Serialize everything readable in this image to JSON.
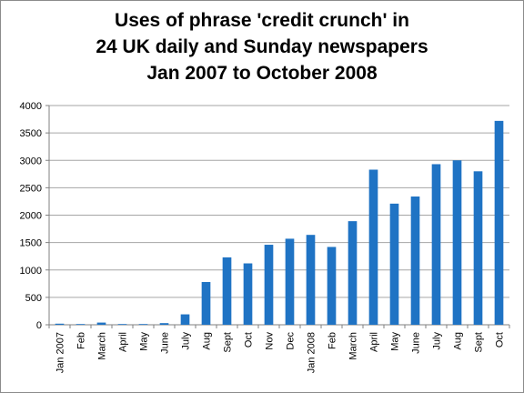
{
  "chart_data": {
    "type": "bar",
    "title_lines": [
      "Uses of phrase 'credit crunch' in",
      "24 UK daily and Sunday newspapers",
      "Jan 2007 to October 2008"
    ],
    "categories": [
      "Jan 2007",
      "Feb",
      "March",
      "April",
      "May",
      "June",
      "July",
      "Aug",
      "Sept",
      "Oct",
      "Nov",
      "Dec",
      "Jan 2008",
      "Feb",
      "March",
      "April",
      "May",
      "June",
      "July",
      "Aug",
      "Sept",
      "Oct"
    ],
    "values": [
      20,
      10,
      40,
      5,
      5,
      30,
      190,
      780,
      1230,
      1120,
      1460,
      1570,
      1640,
      1420,
      1890,
      2830,
      2210,
      2340,
      2930,
      3000,
      2800,
      3720
    ],
    "ylim": [
      0,
      4000
    ],
    "yticks": [
      "0",
      "500",
      "1000",
      "1500",
      "2000",
      "2500",
      "3000",
      "3500",
      "4000"
    ],
    "grid": true,
    "bar_color": "#1f73c4",
    "grid_color": "#a6a6a6"
  }
}
